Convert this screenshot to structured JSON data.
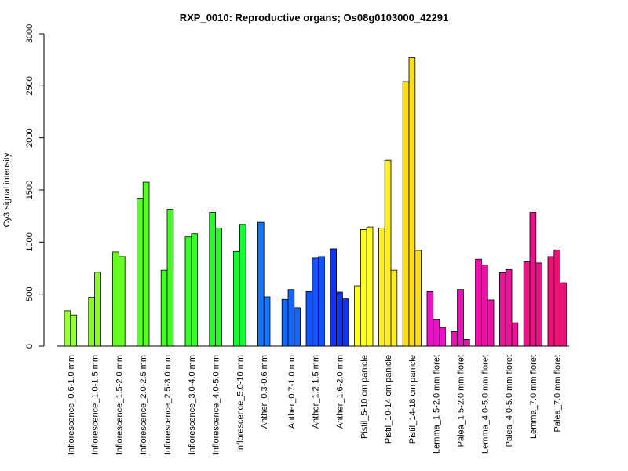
{
  "chart_data": {
    "type": "bar",
    "title": "RXP_0010: Reproductive organs; Os08g0103000_42291",
    "ylabel": "Cy3 signal intensity",
    "xlabel": "",
    "ylim": [
      0,
      3000
    ],
    "yticks": [
      0,
      500,
      1000,
      1500,
      2000,
      2500,
      3000
    ],
    "categories": [
      "Inflorescence_0.6-1.0 mm",
      "Inflorescence_1.0-1.5 mm",
      "Inflorescence_1.5-2.0 mm",
      "Inflorescence_2.0-2.5 mm",
      "Inflorescence_2.5-3.0 mm",
      "Inflorescence_3.0-4.0 mm",
      "Inflorescence_4.0-5.0 mm",
      "Inflorescence_5.0-10 mm",
      "Anther_0.3-0.6 mm",
      "Anther_0.7-1.0 mm",
      "Anther_1.2-1.5 mm",
      "Anther_1.6-2.0 mm",
      "Pistil_5-10 cm panicle",
      "Pistil_10-14 cm panicle",
      "Pistil_14-18 cm panicle",
      "Lemma_1.5-2.0 mm floret",
      "Palea_1.5-2.0 mm floret",
      "Lemma_4.0-5.0 mm floret",
      "Palea_4.0-5.0 mm floret",
      "Lemma_7.0 mm floret",
      "Palea_7.0 mm floret"
    ],
    "groups": [
      {
        "color": "#99ff33",
        "values": [
          340,
          300
        ]
      },
      {
        "color": "#88ff22",
        "values": [
          470,
          710
        ]
      },
      {
        "color": "#66ff22",
        "values": [
          905,
          860
        ]
      },
      {
        "color": "#55ff22",
        "values": [
          1420,
          1575
        ]
      },
      {
        "color": "#44ff22",
        "values": [
          730,
          1315
        ]
      },
      {
        "color": "#33ff22",
        "values": [
          1050,
          1080
        ]
      },
      {
        "color": "#22ff22",
        "values": [
          1285,
          1135
        ]
      },
      {
        "color": "#11ff33",
        "values": [
          910,
          1170
        ]
      },
      {
        "color": "#1177ff",
        "values": [
          1190,
          475
        ]
      },
      {
        "color": "#1166ff",
        "values": [
          450,
          545,
          370
        ]
      },
      {
        "color": "#1155ff",
        "values": [
          525,
          845,
          860
        ]
      },
      {
        "color": "#1133ff",
        "values": [
          935,
          520,
          455
        ]
      },
      {
        "color": "#ffff22",
        "values": [
          580,
          1120,
          1145
        ]
      },
      {
        "color": "#ffee22",
        "values": [
          1135,
          1785,
          730
        ]
      },
      {
        "color": "#ffdd11",
        "values": [
          2540,
          2770,
          920
        ]
      },
      {
        "color": "#ee11cc",
        "values": [
          525,
          255,
          180
        ]
      },
      {
        "color": "#ee11bb",
        "values": [
          140,
          545,
          65
        ]
      },
      {
        "color": "#ee11aa",
        "values": [
          835,
          780,
          445
        ]
      },
      {
        "color": "#ee1199",
        "values": [
          705,
          735,
          225
        ]
      },
      {
        "color": "#ee1188",
        "values": [
          810,
          1285,
          800
        ]
      },
      {
        "color": "#ee1177",
        "values": [
          860,
          925,
          610
        ]
      }
    ]
  }
}
